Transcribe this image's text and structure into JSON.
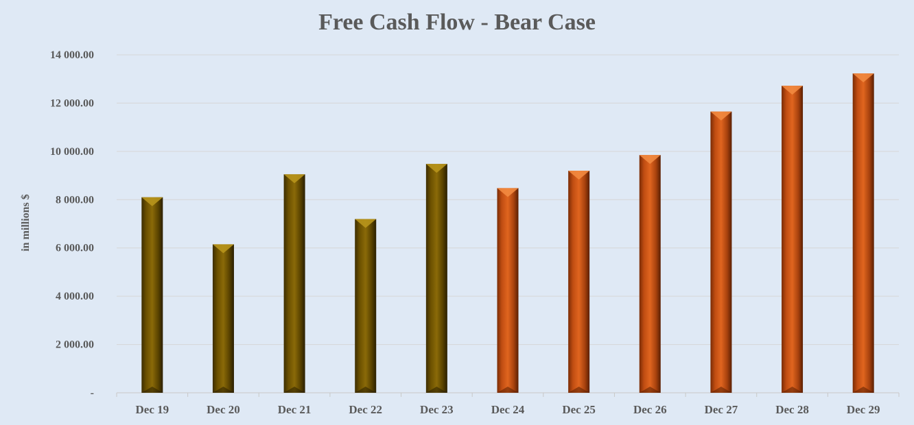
{
  "chart_data": {
    "type": "bar",
    "title": "Free Cash Flow - Bear Case",
    "xlabel": "",
    "ylabel": "in millions $",
    "categories": [
      "Dec 19",
      "Dec 20",
      "Dec 21",
      "Dec 22",
      "Dec 23",
      "Dec 24",
      "Dec 25",
      "Dec 26",
      "Dec 27",
      "Dec 28",
      "Dec 29"
    ],
    "values": [
      8100,
      6150,
      9050,
      7200,
      9480,
      8480,
      9200,
      9850,
      11650,
      12720,
      13230
    ],
    "historical_count": 5,
    "colors": {
      "historical": "#7a5c00",
      "projected": "#d0571a"
    },
    "ylim": [
      0,
      14000
    ],
    "yticks": [
      0,
      2000,
      4000,
      6000,
      8000,
      10000,
      12000,
      14000
    ],
    "ytick_labels": [
      "-",
      "2 000.00",
      "4 000.00",
      "6 000.00",
      "8 000.00",
      "10 000.00",
      "12 000.00",
      "14 000.00"
    ],
    "grid": true,
    "legend": "none"
  }
}
